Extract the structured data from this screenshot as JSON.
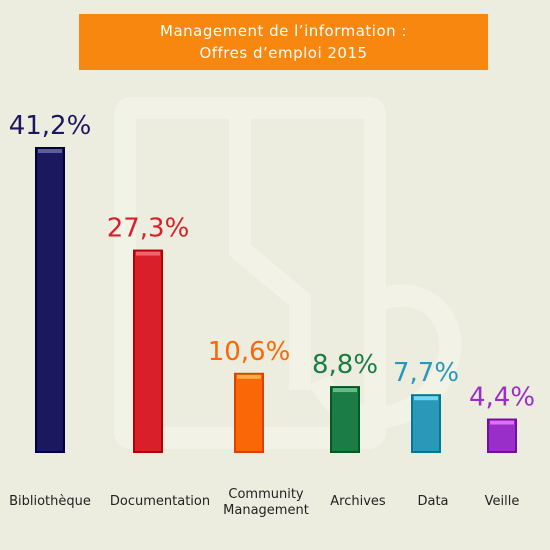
{
  "title": {
    "line1": "Management de l’information :",
    "line2": "Offres d’emploi 2015"
  },
  "chart_data": {
    "type": "bar",
    "categories": [
      [
        "Bibliothèque"
      ],
      [
        "Documentation"
      ],
      [
        "Community",
        "Management"
      ],
      [
        "Archives"
      ],
      [
        "Data"
      ],
      [
        "Veille"
      ]
    ],
    "values": [
      41.2,
      27.3,
      10.6,
      8.8,
      7.7,
      4.4
    ],
    "value_labels": [
      "41,2%",
      "27,3%",
      "10,6%",
      "8,8%",
      "7,7%",
      "4,4%"
    ],
    "colors": [
      "#1c1860",
      "#d81f2a",
      "#f96707",
      "#1b7d45",
      "#2a98b8",
      "#9a2ec9"
    ],
    "ylim": [
      0,
      41.2
    ],
    "grid": false,
    "legend": "none"
  }
}
